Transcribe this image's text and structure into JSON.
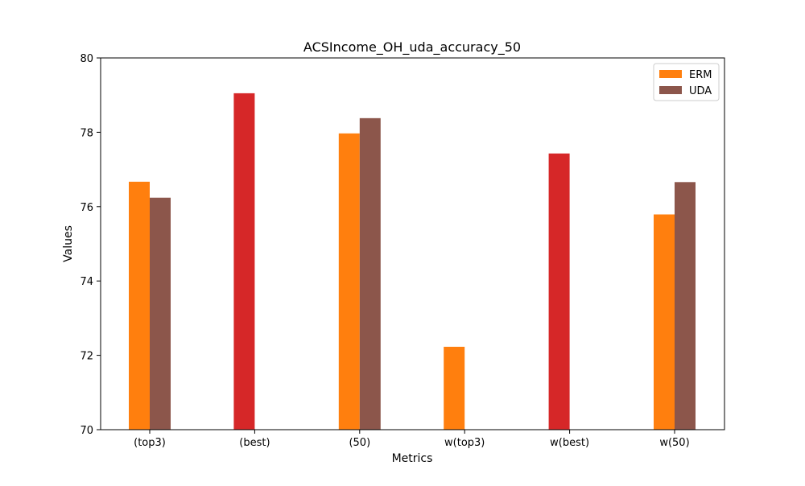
{
  "chart_data": {
    "type": "bar",
    "title": "ACSIncome_OH_uda_accuracy_50",
    "xlabel": "Metrics",
    "ylabel": "Values",
    "ylim": [
      70,
      80
    ],
    "yticks": [
      70,
      72,
      74,
      76,
      78,
      80
    ],
    "grid": false,
    "legend_position": "top-right",
    "categories": [
      "(top3)",
      "(best)",
      "(50)",
      "w(top3)",
      "w(best)",
      "w(50)"
    ],
    "series": [
      {
        "name": "ERM",
        "color": "#ff7f0e",
        "values": [
          76.67,
          null,
          77.97,
          72.23,
          null,
          75.79
        ]
      },
      {
        "name": "UDA",
        "color": "#8c564b",
        "values": [
          76.24,
          null,
          78.38,
          null,
          null,
          76.66
        ]
      }
    ],
    "extra_bars": [
      {
        "category": "(best)",
        "value": 79.05,
        "color": "#d62728"
      },
      {
        "category": "w(best)",
        "value": 77.43,
        "color": "#d62728"
      }
    ]
  }
}
